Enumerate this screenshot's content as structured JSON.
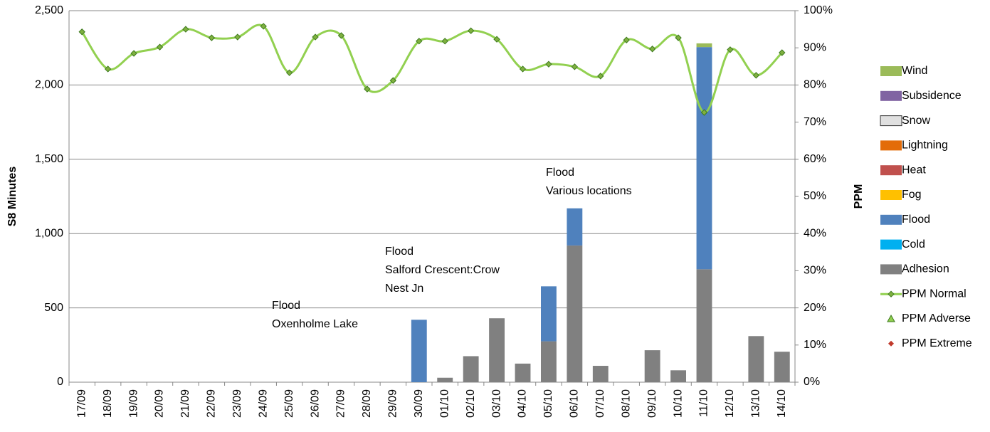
{
  "chart_data": {
    "type": "bar",
    "y_label": "S8 Minutes",
    "y2_label": "PPM",
    "categories": [
      "17/09",
      "18/09",
      "19/09",
      "20/09",
      "21/09",
      "22/09",
      "23/09",
      "24/09",
      "25/09",
      "26/09",
      "27/09",
      "28/09",
      "29/09",
      "30/09",
      "01/10",
      "02/10",
      "03/10",
      "04/10",
      "05/10",
      "06/10",
      "07/10",
      "08/10",
      "09/10",
      "10/10",
      "11/10",
      "12/10",
      "13/10",
      "14/10"
    ],
    "ylim": [
      0,
      2500
    ],
    "yticks": [
      0,
      500,
      {
        "value": 1000,
        "label": "1,000"
      },
      {
        "value": 1500,
        "label": "1,500"
      },
      {
        "value": 2000,
        "label": "2,000"
      },
      {
        "value": 2500,
        "label": "2,500"
      }
    ],
    "y2lim": [
      0,
      100
    ],
    "y2ticks": [
      {
        "value": 0,
        "label": "0%"
      },
      {
        "value": 10,
        "label": "10%"
      },
      {
        "value": 20,
        "label": "20%"
      },
      {
        "value": 30,
        "label": "30%"
      },
      {
        "value": 40,
        "label": "40%"
      },
      {
        "value": 50,
        "label": "50%"
      },
      {
        "value": 60,
        "label": "60%"
      },
      {
        "value": 70,
        "label": "70%"
      },
      {
        "value": 80,
        "label": "80%"
      },
      {
        "value": 90,
        "label": "90%"
      },
      {
        "value": 100,
        "label": "100%"
      }
    ],
    "grid": true,
    "legend": "right",
    "series": [
      {
        "name": "Adhesion",
        "color": "#808080",
        "values": [
          0,
          0,
          0,
          0,
          0,
          0,
          0,
          0,
          0,
          0,
          0,
          0,
          0,
          0,
          30,
          175,
          430,
          125,
          275,
          920,
          110,
          0,
          215,
          80,
          760,
          0,
          310,
          205
        ]
      },
      {
        "name": "Cold",
        "color": "#00b0f0",
        "values": [
          0,
          0,
          0,
          0,
          0,
          0,
          0,
          0,
          0,
          0,
          0,
          0,
          0,
          0,
          0,
          0,
          0,
          0,
          0,
          0,
          0,
          0,
          0,
          0,
          0,
          0,
          0,
          0
        ]
      },
      {
        "name": "Flood",
        "color": "#4f81bd",
        "values": [
          0,
          0,
          0,
          0,
          0,
          0,
          0,
          0,
          0,
          0,
          0,
          0,
          0,
          420,
          0,
          0,
          0,
          0,
          370,
          250,
          0,
          0,
          0,
          0,
          1495,
          0,
          0,
          0
        ]
      },
      {
        "name": "Fog",
        "color": "#ffc000",
        "values": [
          0,
          0,
          0,
          0,
          0,
          0,
          0,
          0,
          0,
          0,
          0,
          0,
          0,
          0,
          0,
          0,
          0,
          0,
          0,
          0,
          0,
          0,
          0,
          0,
          0,
          0,
          0,
          0
        ]
      },
      {
        "name": "Heat",
        "color": "#c0504d",
        "values": [
          0,
          0,
          0,
          0,
          0,
          0,
          0,
          0,
          0,
          0,
          0,
          0,
          0,
          0,
          0,
          0,
          0,
          0,
          0,
          0,
          0,
          0,
          0,
          0,
          0,
          0,
          0,
          0
        ]
      },
      {
        "name": "Lightning",
        "color": "#e36c09",
        "values": [
          0,
          0,
          0,
          0,
          0,
          0,
          0,
          0,
          0,
          0,
          0,
          0,
          0,
          0,
          0,
          0,
          0,
          0,
          0,
          0,
          0,
          0,
          0,
          0,
          0,
          0,
          0,
          0
        ]
      },
      {
        "name": "Snow",
        "color": "#e0e0e0",
        "values": [
          0,
          0,
          0,
          0,
          0,
          0,
          0,
          0,
          0,
          0,
          0,
          0,
          0,
          0,
          0,
          0,
          0,
          0,
          0,
          0,
          0,
          0,
          0,
          0,
          0,
          0,
          0,
          0
        ]
      },
      {
        "name": "Subsidence",
        "color": "#8064a2",
        "values": [
          0,
          0,
          0,
          0,
          0,
          0,
          0,
          0,
          0,
          0,
          0,
          0,
          0,
          0,
          0,
          0,
          0,
          0,
          0,
          0,
          0,
          0,
          0,
          0,
          0,
          0,
          0,
          0
        ]
      },
      {
        "name": "Wind",
        "color": "#9bbb59",
        "values": [
          0,
          0,
          0,
          0,
          0,
          0,
          0,
          0,
          0,
          0,
          0,
          0,
          0,
          0,
          0,
          0,
          0,
          0,
          0,
          0,
          0,
          0,
          0,
          0,
          25,
          0,
          0,
          0
        ]
      },
      {
        "name": "PPM Normal",
        "color": "#92d050",
        "type": "line",
        "axis": "y2",
        "values": [
          94.3,
          84.3,
          88.5,
          90.2,
          95,
          92.7,
          92.9,
          95.8,
          83.3,
          92.9,
          93.3,
          78.9,
          81.2,
          91.8,
          91.8,
          94.6,
          92.3,
          84.3,
          85.6,
          84.9,
          82.4,
          92.1,
          89.7,
          92.7,
          72.6,
          89.5,
          82.6,
          88.7
        ]
      },
      {
        "name": "PPM Adverse",
        "color": "#92d050",
        "type": "line",
        "axis": "y2",
        "values": [
          null,
          null,
          null,
          null,
          null,
          null,
          null,
          null,
          null,
          null,
          null,
          null,
          null,
          null,
          null,
          null,
          null,
          null,
          null,
          null,
          null,
          null,
          null,
          null,
          null,
          null,
          null,
          null
        ]
      },
      {
        "name": "PPM Extreme",
        "color": "#c0392b",
        "type": "line",
        "axis": "y2",
        "values": [
          null,
          null,
          null,
          null,
          null,
          null,
          null,
          null,
          null,
          null,
          null,
          null,
          null,
          null,
          null,
          null,
          null,
          null,
          null,
          null,
          null,
          null,
          null,
          null,
          null,
          null,
          null,
          null
        ]
      }
    ],
    "annotations": [
      [
        "Flood",
        "Oxenholme Lake"
      ],
      [
        "Flood",
        "Salford Crescent:Crow",
        "Nest Jn"
      ],
      [
        "Flood",
        "Various locations"
      ]
    ]
  }
}
